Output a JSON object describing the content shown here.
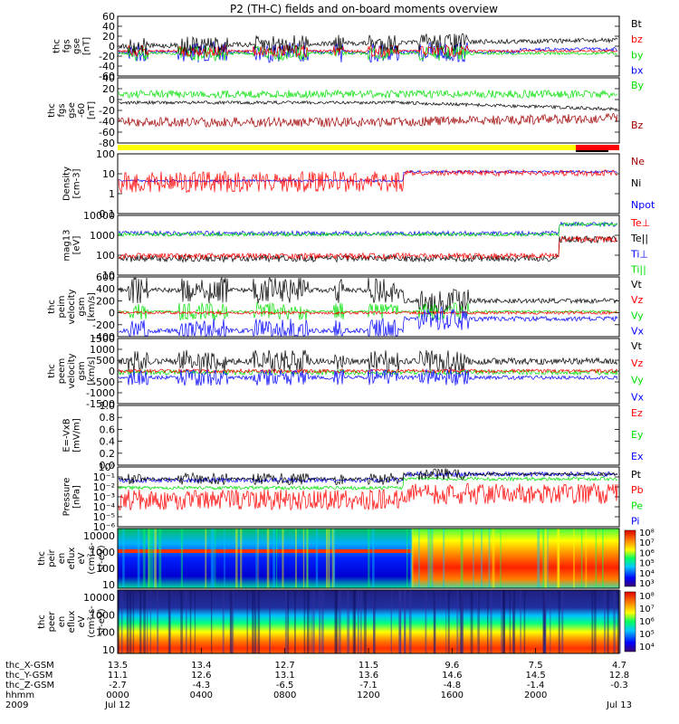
{
  "title": "P2 (TH-C) fields and on-board moments overview",
  "colors": {
    "black": "#000000",
    "red": "#ff0000",
    "green": "#00e000",
    "blue": "#0000ff",
    "yellow": "#ffff00",
    "darkred": "#a00000"
  },
  "chart_data": [
    {
      "id": "p1",
      "type": "line",
      "ylabel": [
        "thc",
        "fgs",
        "gse",
        "[nT]"
      ],
      "ylim": [
        -60,
        60
      ],
      "yticks": [
        "60",
        "40",
        "20",
        "0",
        "-20",
        "-40",
        "-60"
      ],
      "series": [
        {
          "name": "Bt",
          "color": "#000000"
        },
        {
          "name": "bz",
          "color": "#ff0000"
        },
        {
          "name": "by",
          "color": "#00e000"
        },
        {
          "name": "bx",
          "color": "#0000ff"
        }
      ]
    },
    {
      "id": "p2",
      "type": "line",
      "ylabel": [
        "thc",
        "fgs",
        "gse",
        "-60",
        "[nT]"
      ],
      "ylim": [
        -80,
        40
      ],
      "yticks": [
        "40",
        "20",
        "0",
        "-20",
        "-40",
        "-60",
        "-80"
      ],
      "series": [
        {
          "name": "By",
          "color": "#00e000"
        },
        {
          "name": "Bz",
          "color": "#a00000"
        }
      ]
    },
    {
      "id": "p3",
      "type": "line",
      "ylabel": [
        "Density",
        "[cm-3]"
      ],
      "ylim": [
        0.01,
        300
      ],
      "log": true,
      "yticks": [
        "100",
        "10",
        "1",
        "0.1"
      ],
      "series": [
        {
          "name": "Ne",
          "color": "#a00000"
        },
        {
          "name": "Ni",
          "color": "#000000"
        },
        {
          "name": "Npot",
          "color": "#0000ff"
        }
      ]
    },
    {
      "id": "p4",
      "type": "line",
      "ylabel": [
        "mag13",
        "[eV]"
      ],
      "ylim": [
        1,
        10000
      ],
      "log": true,
      "yticks": [
        "10000",
        "1000",
        "100",
        "10"
      ],
      "series": [
        {
          "name": "Te⊥",
          "color": "#ff0000"
        },
        {
          "name": "Te||",
          "color": "#000000"
        },
        {
          "name": "Ti⊥",
          "color": "#0000ff"
        },
        {
          "name": "Ti||",
          "color": "#00e000"
        }
      ]
    },
    {
      "id": "p5",
      "type": "line",
      "ylabel": [
        "thc",
        "peim",
        "velocity",
        "gsm",
        "[km/s]"
      ],
      "ylim": [
        -400,
        600
      ],
      "yticks": [
        "600",
        "400",
        "200",
        "0",
        "-200",
        "-400"
      ],
      "series": [
        {
          "name": "Vt",
          "color": "#000000"
        },
        {
          "name": "Vz",
          "color": "#ff0000"
        },
        {
          "name": "Vy",
          "color": "#00e000"
        },
        {
          "name": "Vx",
          "color": "#0000ff"
        }
      ]
    },
    {
      "id": "p6",
      "type": "line",
      "ylabel": [
        "thc",
        "peem",
        "velocity",
        "gsm",
        "[km/s]"
      ],
      "ylim": [
        -1500,
        1500
      ],
      "yticks": [
        "1500",
        "1000",
        "500",
        "0",
        "-500",
        "-1000",
        "-1500"
      ],
      "series": [
        {
          "name": "Vt",
          "color": "#000000"
        },
        {
          "name": "Vz",
          "color": "#ff0000"
        },
        {
          "name": "Vy",
          "color": "#00e000"
        },
        {
          "name": "Vx",
          "color": "#0000ff"
        }
      ]
    },
    {
      "id": "p7",
      "type": "line",
      "ylabel": [
        "E=-VxB",
        "[mV/m]"
      ],
      "ylim": [
        0,
        1
      ],
      "yticks": [
        "1.0",
        "0.8",
        "0.6",
        "0.4",
        "0.2",
        "0.0"
      ],
      "series": [
        {
          "name": "Ez",
          "color": "#ff0000"
        },
        {
          "name": "Ey",
          "color": "#00e000"
        },
        {
          "name": "Ex",
          "color": "#0000ff"
        }
      ]
    },
    {
      "id": "p8",
      "type": "line",
      "ylabel": [
        "Pressure",
        "[nPa]"
      ],
      "ylim": [
        1e-06,
        1
      ],
      "log": true,
      "yticks": [
        "10⁰",
        "10⁻¹",
        "10⁻²",
        "10⁻³",
        "10⁻⁴",
        "10⁻⁵",
        "10⁻⁶"
      ],
      "series": [
        {
          "name": "Pt",
          "color": "#000000"
        },
        {
          "name": "Pb",
          "color": "#ff0000"
        },
        {
          "name": "Pe",
          "color": "#00e000"
        },
        {
          "name": "Pi",
          "color": "#0000ff"
        }
      ]
    },
    {
      "id": "p9",
      "type": "heatmap",
      "ylabel": [
        "thc",
        "peir",
        "en",
        "eflux",
        "eV",
        "(cm²-s-",
        "sr-eV)"
      ],
      "yticks": [
        "10000",
        "1000",
        "100",
        "10"
      ],
      "colorbar": [
        "10⁸",
        "10⁷",
        "10⁶",
        "10⁵",
        "10⁴",
        "10³"
      ]
    },
    {
      "id": "p10",
      "type": "heatmap",
      "ylabel": [
        "thc",
        "peer",
        "en",
        "eflux",
        "eV",
        "(cm²-s-",
        "sr-eV)"
      ],
      "yticks": [
        "10000",
        "1000",
        "100",
        "10"
      ],
      "colorbar": [
        "10⁸",
        "10⁷",
        "10⁶",
        "10⁵",
        "10⁴"
      ]
    }
  ],
  "xaxis": {
    "row_labels": [
      "thc_X-GSM",
      "thc_Y-GSM",
      "thc_Z-GSM",
      "hhmm",
      "2009"
    ],
    "columns": [
      [
        "13.5",
        "11.1",
        "-2.7",
        "0000",
        "Jul 12"
      ],
      [
        "13.4",
        "12.6",
        "-4.3",
        "0400",
        ""
      ],
      [
        "12.7",
        "13.1",
        "-6.5",
        "0800",
        ""
      ],
      [
        "11.5",
        "13.6",
        "-7.1",
        "1200",
        ""
      ],
      [
        "9.6",
        "14.6",
        "-4.8",
        "1600",
        ""
      ],
      [
        "7.5",
        "14.5",
        "-1.4",
        "2000",
        ""
      ],
      [
        "4.7",
        "12.8",
        "-0.3",
        "",
        "Jul 13"
      ]
    ]
  }
}
